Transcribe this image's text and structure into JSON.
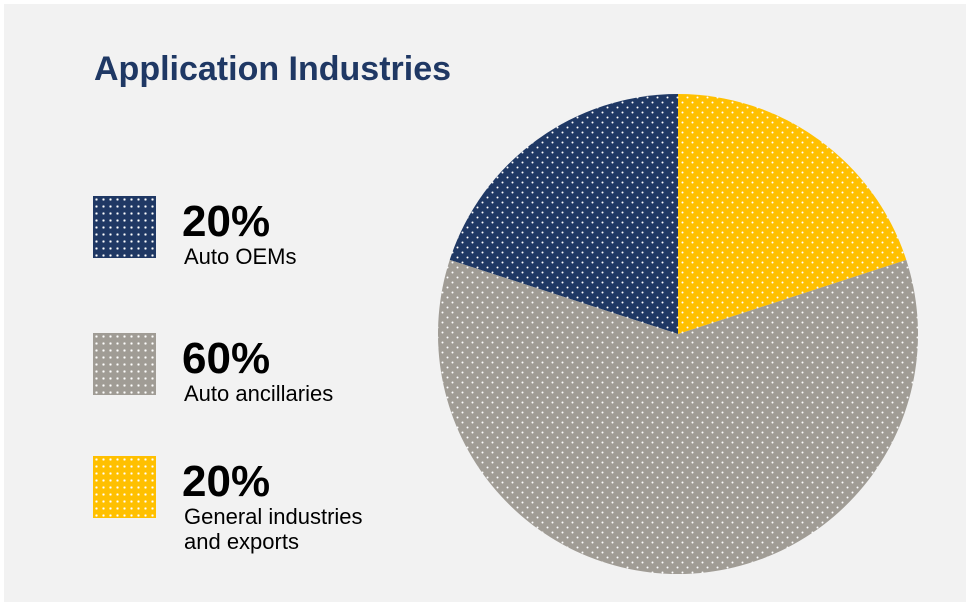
{
  "chart_data": {
    "type": "pie",
    "title": "Application Industries",
    "categories": [
      "Auto OEMs",
      "Auto ancillaries",
      "General industries and exports"
    ],
    "values": [
      20,
      60,
      20
    ],
    "value_labels": [
      "20%",
      "60%",
      "20%"
    ],
    "colors": [
      "#1f3864",
      "#a09c95",
      "#ffc000"
    ]
  }
}
